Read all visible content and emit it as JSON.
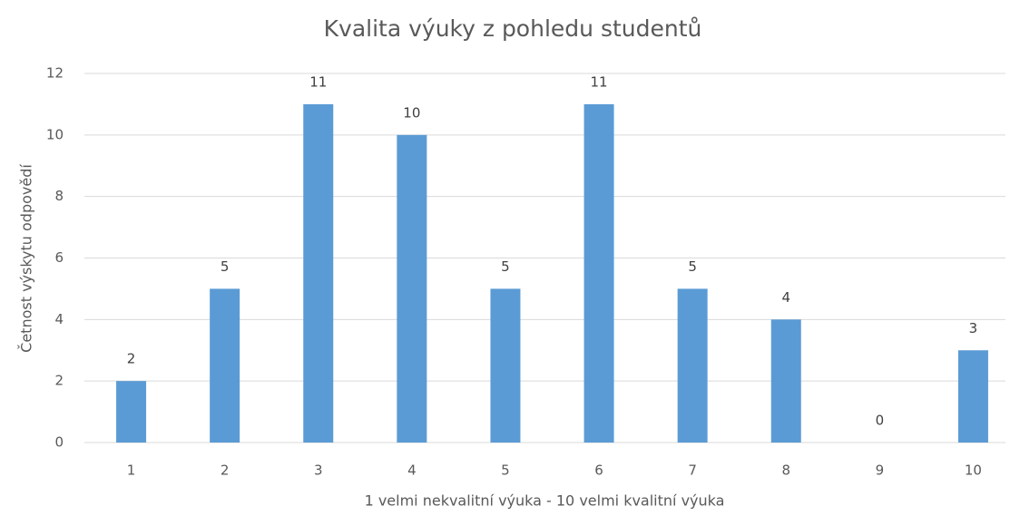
{
  "chart_data": {
    "type": "bar",
    "title": "Kvalita výuky z pohledu studentů",
    "xlabel": "1 velmi nekvalitní výuka - 10 velmi kvalitní výuka",
    "ylabel": "Četnost výskytu odpovědí",
    "categories": [
      "1",
      "2",
      "3",
      "4",
      "5",
      "6",
      "7",
      "8",
      "9",
      "10"
    ],
    "values": [
      2,
      5,
      11,
      10,
      5,
      11,
      5,
      4,
      0,
      3
    ],
    "color": "#5b9bd5",
    "ylim": [
      0,
      12
    ],
    "yticks": [
      0,
      2,
      4,
      6,
      8,
      10,
      12
    ],
    "grid": true
  }
}
